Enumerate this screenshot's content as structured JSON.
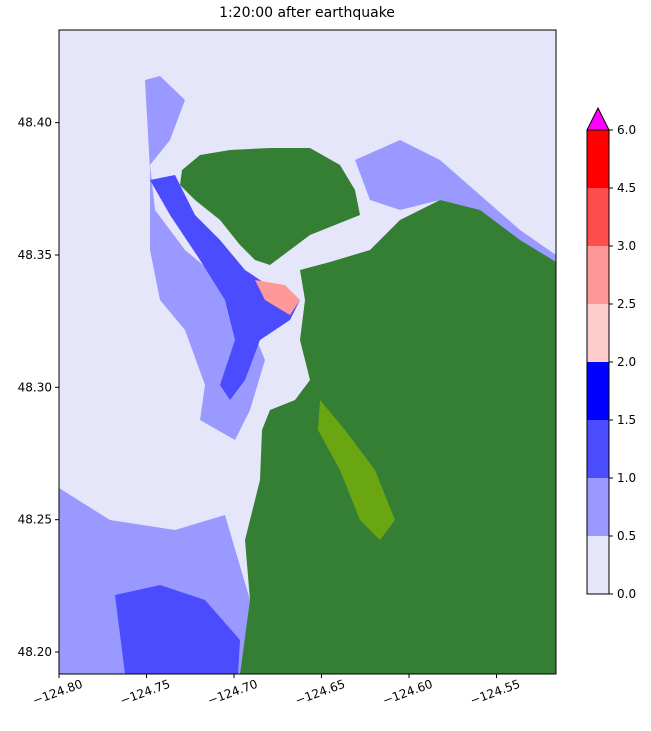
{
  "chart_data": {
    "type": "map",
    "title": "1:20:00 after earthquake",
    "xlim": [
      -124.8,
      -124.516
    ],
    "ylim": [
      48.1917,
      48.435
    ],
    "xticks": [
      {
        "value": -124.8,
        "label": "−124.80"
      },
      {
        "value": -124.75,
        "label": "−124.75"
      },
      {
        "value": -124.7,
        "label": "−124.70"
      },
      {
        "value": -124.65,
        "label": "−124.65"
      },
      {
        "value": -124.6,
        "label": "−124.60"
      },
      {
        "value": -124.55,
        "label": "−124.55"
      }
    ],
    "yticks": [
      {
        "value": 48.2,
        "label": "48.20"
      },
      {
        "value": 48.25,
        "label": "48.25"
      },
      {
        "value": 48.3,
        "label": "48.30"
      },
      {
        "value": 48.35,
        "label": "48.35"
      },
      {
        "value": 48.4,
        "label": "48.40"
      }
    ],
    "colorbar": {
      "ticks": [
        {
          "value": 0,
          "label": "0.0"
        },
        {
          "value": 0.5,
          "label": "0.5"
        },
        {
          "value": 1,
          "label": "1.0"
        },
        {
          "value": 1.5,
          "label": "1.5"
        },
        {
          "value": 2,
          "label": "2.0"
        },
        {
          "value": 2.5,
          "label": "2.5"
        },
        {
          "value": 3,
          "label": "3.0"
        },
        {
          "value": 4.5,
          "label": "4.5"
        },
        {
          "value": 6,
          "label": "6.0"
        }
      ],
      "colors": [
        "#e6e6fa",
        "#9999ff",
        "#4c4cff",
        "#0000ff",
        "#ffcccc",
        "#ff9999",
        "#ff4c4c",
        "#ff0000"
      ],
      "extend_color": "#ff00ff"
    }
  }
}
